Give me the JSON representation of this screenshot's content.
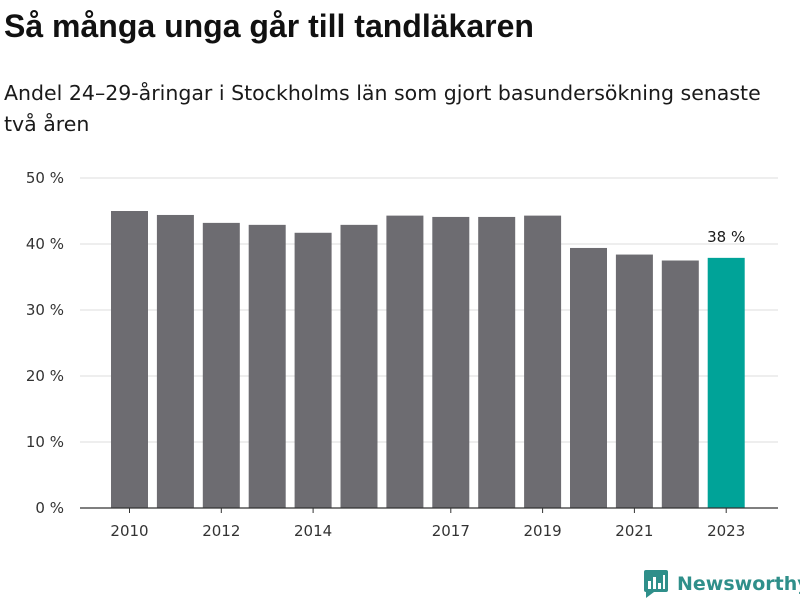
{
  "header": {
    "title": "Så många unga går till tandläkaren",
    "subtitle": "Andel 24–29-åringar i Stockholms län som gjort basundersökning senaste två åren"
  },
  "chart_data": {
    "type": "bar",
    "title": "Så många unga går till tandläkaren",
    "subtitle": "Andel 24–29-åringar i Stockholms län som gjort basundersökning senaste två åren",
    "categories": [
      "2010",
      "2011",
      "2012",
      "2013",
      "2014",
      "2015",
      "2016",
      "2017",
      "2018",
      "2019",
      "2020",
      "2021",
      "2022",
      "2023"
    ],
    "x_tick_labels": [
      "2010",
      "2012",
      "2014",
      "2017",
      "2019",
      "2021",
      "2023"
    ],
    "values": [
      45.0,
      44.4,
      43.2,
      42.9,
      41.7,
      42.9,
      44.3,
      44.1,
      44.1,
      44.3,
      39.4,
      38.4,
      37.5,
      37.9
    ],
    "y_tick_labels": [
      "0 %",
      "10 %",
      "20 %",
      "30 %",
      "40 %",
      "50 %"
    ],
    "ylim": [
      0,
      50
    ],
    "y_ticks": [
      0,
      10,
      20,
      30,
      40,
      50
    ],
    "grid": true,
    "annotations": [
      {
        "category": "2023",
        "text": "38 %"
      }
    ],
    "colors": {
      "bar": "#6d6c71",
      "highlight": "#00a398",
      "grid": "#dcdcdc",
      "axis": "#333333"
    },
    "highlight_category": "2023"
  },
  "brand": {
    "name": "Newsworthy",
    "icon": "newsworthy-logo-icon",
    "color": "#2f8f8a"
  }
}
